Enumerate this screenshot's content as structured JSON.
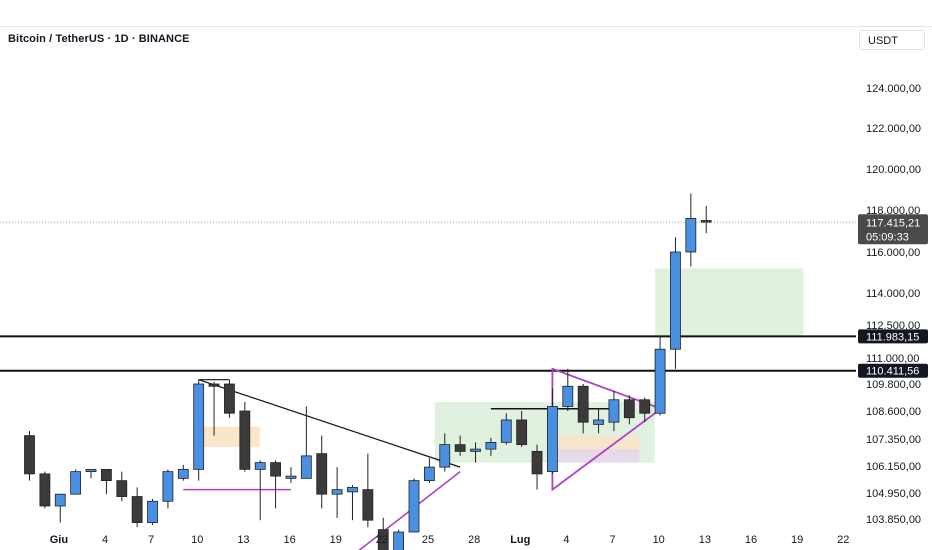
{
  "header": {
    "title": "Bitcoin / TetherUS · 1D · BINANCE",
    "unit": "USDT"
  },
  "colors": {
    "up": "#4a90e2",
    "down": "#3b3b3b",
    "wick": "#222222",
    "trendline": "#111111",
    "triangle": "#b040c8",
    "zone_green": "#d6ecd6",
    "zone_orange": "#fbe3c4",
    "tag_bg": "#131722",
    "tag_current": "#4a4a4a"
  },
  "chart_data": {
    "type": "candlestick",
    "title": "Bitcoin / TetherUS · 1D · BINANCE",
    "y_axis": {
      "ticks": [
        "103.850,00",
        "104.950,00",
        "106.150,00",
        "107.350,00",
        "108.600,00",
        "109.800,00",
        "111.000,00",
        "112.500,00",
        "114.000,00",
        "116.000,00",
        "118.000,00",
        "120.000,00",
        "122.000,00",
        "124.000,00"
      ],
      "tick_values": [
        103850,
        104950,
        106150,
        107350,
        108600,
        109800,
        111000,
        112500,
        114000,
        116000,
        118000,
        120000,
        122000,
        124000
      ]
    },
    "x_axis": {
      "ticks": [
        "Giu",
        "4",
        "7",
        "10",
        "13",
        "16",
        "19",
        "22",
        "25",
        "28",
        "Lug",
        "4",
        "7",
        "10",
        "13",
        "16",
        "19",
        "22"
      ],
      "tick_index": [
        1,
        4,
        7,
        10,
        13,
        16,
        19,
        22,
        25,
        28,
        31,
        34,
        37,
        40,
        43,
        46,
        49,
        52
      ]
    },
    "candles": [
      {
        "i": 0,
        "o": 107500,
        "h": 107700,
        "l": 105500,
        "c": 105800
      },
      {
        "i": 1,
        "o": 105800,
        "h": 105900,
        "l": 104300,
        "c": 104400
      },
      {
        "i": 2,
        "o": 104400,
        "h": 104900,
        "l": 103700,
        "c": 104900
      },
      {
        "i": 3,
        "o": 104900,
        "h": 106000,
        "l": 104900,
        "c": 105900
      },
      {
        "i": 4,
        "o": 105900,
        "h": 106000,
        "l": 105600,
        "c": 106000
      },
      {
        "i": 5,
        "o": 106000,
        "h": 106000,
        "l": 104900,
        "c": 105500
      },
      {
        "i": 6,
        "o": 105500,
        "h": 105900,
        "l": 104600,
        "c": 104800
      },
      {
        "i": 7,
        "o": 104800,
        "h": 105200,
        "l": 103500,
        "c": 103700
      },
      {
        "i": 8,
        "o": 103700,
        "h": 104700,
        "l": 103600,
        "c": 104600
      },
      {
        "i": 9,
        "o": 104600,
        "h": 106000,
        "l": 104300,
        "c": 105900
      },
      {
        "i": 10,
        "o": 105600,
        "h": 106200,
        "l": 105500,
        "c": 106000
      },
      {
        "i": 11,
        "o": 106000,
        "h": 110000,
        "l": 105500,
        "c": 109800
      },
      {
        "i": 12,
        "o": 109800,
        "h": 109900,
        "l": 107500,
        "c": 109700
      },
      {
        "i": 13,
        "o": 109800,
        "h": 110000,
        "l": 108300,
        "c": 108500
      },
      {
        "i": 14,
        "o": 108600,
        "h": 109000,
        "l": 105900,
        "c": 106000
      },
      {
        "i": 15,
        "o": 106000,
        "h": 106400,
        "l": 103800,
        "c": 106300
      },
      {
        "i": 16,
        "o": 106300,
        "h": 106400,
        "l": 104300,
        "c": 105700
      },
      {
        "i": 17,
        "o": 105600,
        "h": 106100,
        "l": 105400,
        "c": 105700
      },
      {
        "i": 18,
        "o": 105600,
        "h": 108800,
        "l": 105600,
        "c": 106600
      },
      {
        "i": 19,
        "o": 106700,
        "h": 107500,
        "l": 104300,
        "c": 104900
      },
      {
        "i": 20,
        "o": 104900,
        "h": 106100,
        "l": 103900,
        "c": 105100
      },
      {
        "i": 21,
        "o": 105000,
        "h": 105300,
        "l": 103800,
        "c": 105200
      },
      {
        "i": 22,
        "o": 105100,
        "h": 106700,
        "l": 103500,
        "c": 103800
      },
      {
        "i": 23,
        "o": 103400,
        "h": 103900,
        "l": 101600,
        "c": 101800
      },
      {
        "i": 24,
        "o": 101800,
        "h": 103400,
        "l": 101800,
        "c": 103300
      },
      {
        "i": 25,
        "o": 103300,
        "h": 105600,
        "l": 103300,
        "c": 105500
      },
      {
        "i": 26,
        "o": 105500,
        "h": 106500,
        "l": 105400,
        "c": 106100
      },
      {
        "i": 27,
        "o": 106100,
        "h": 107600,
        "l": 105900,
        "c": 107100
      },
      {
        "i": 28,
        "o": 107100,
        "h": 107500,
        "l": 106600,
        "c": 106800
      },
      {
        "i": 29,
        "o": 106800,
        "h": 107200,
        "l": 106300,
        "c": 106900
      },
      {
        "i": 30,
        "o": 106900,
        "h": 107400,
        "l": 106600,
        "c": 107200
      },
      {
        "i": 31,
        "o": 107200,
        "h": 108500,
        "l": 107100,
        "c": 108200
      },
      {
        "i": 32,
        "o": 108200,
        "h": 108600,
        "l": 107000,
        "c": 107100
      },
      {
        "i": 33,
        "o": 106800,
        "h": 107100,
        "l": 105100,
        "c": 105800
      },
      {
        "i": 34,
        "o": 105900,
        "h": 109600,
        "l": 105800,
        "c": 108800
      },
      {
        "i": 35,
        "o": 108800,
        "h": 110500,
        "l": 108600,
        "c": 109700
      },
      {
        "i": 36,
        "o": 109700,
        "h": 109800,
        "l": 107600,
        "c": 108100
      },
      {
        "i": 37,
        "o": 108000,
        "h": 108700,
        "l": 107600,
        "c": 108200
      },
      {
        "i": 38,
        "o": 108100,
        "h": 109500,
        "l": 107700,
        "c": 109100
      },
      {
        "i": 39,
        "o": 109100,
        "h": 109300,
        "l": 108000,
        "c": 108300
      },
      {
        "i": 40,
        "o": 109100,
        "h": 109200,
        "l": 108100,
        "c": 108500
      },
      {
        "i": 41,
        "o": 108500,
        "h": 112000,
        "l": 108400,
        "c": 111400
      },
      {
        "i": 42,
        "o": 111400,
        "h": 116700,
        "l": 110500,
        "c": 116000
      },
      {
        "i": 43,
        "o": 116000,
        "h": 118800,
        "l": 115300,
        "c": 117600
      },
      {
        "i": 44,
        "o": 117500,
        "h": 118200,
        "l": 116900,
        "c": 117415
      }
    ],
    "annotations": {
      "horizontal_levels": [
        111983.15,
        110411.56
      ],
      "current_price": "117.415,21",
      "countdown": "05:09:33",
      "level_labels": [
        "111.983,15",
        "110.411,56"
      ]
    }
  }
}
